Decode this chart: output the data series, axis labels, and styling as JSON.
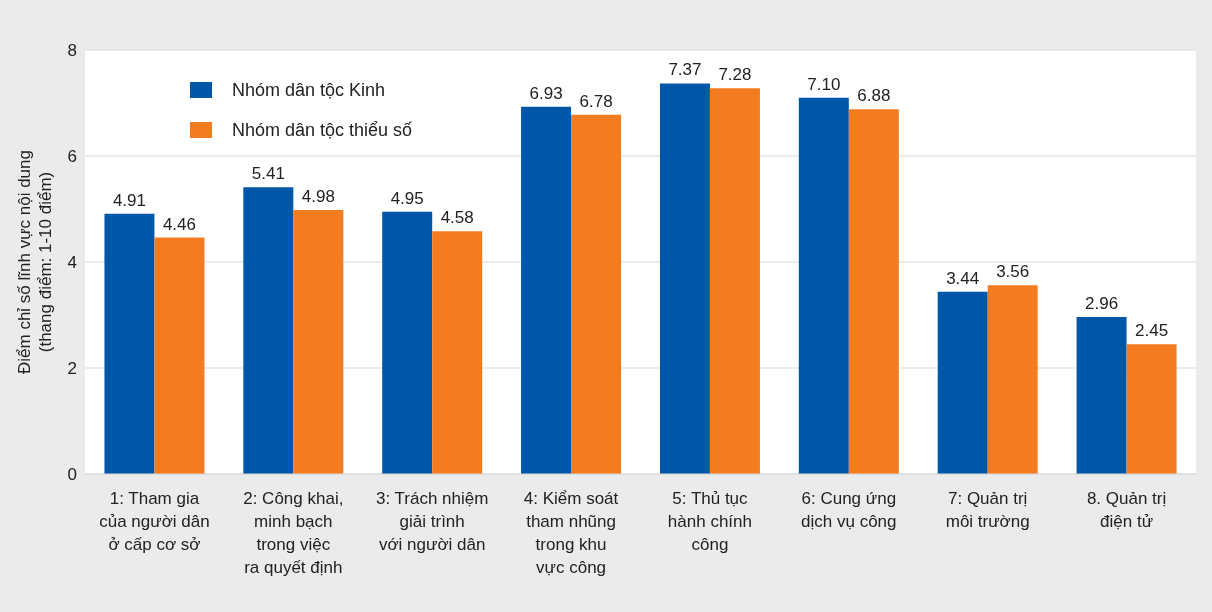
{
  "chart_data": {
    "type": "bar",
    "ylabel": "Điểm chỉ số lĩnh vực nội dung\n(thang điểm: 1-10 điểm)",
    "categories": [
      "1: Tham gia\ncủa người dân\nở cấp cơ sở",
      "2: Công khai,\nminh bạch\ntrong việc\nra quyết định",
      "3: Trách nhiệm\ngiải trình\nvới người dân",
      "4: Kiểm soát\ntham nhũng\ntrong khu\nvực công",
      "5: Thủ tục\nhành chính\ncông",
      "6: Cung ứng\ndịch vụ công",
      "7: Quản trị\nmôi trường",
      "8. Quản trị\nđiện tử"
    ],
    "series": [
      {
        "name": "Nhóm dân tộc Kinh",
        "color": "#0057a8",
        "values": [
          4.91,
          5.41,
          4.95,
          6.93,
          7.37,
          7.1,
          3.44,
          2.96
        ],
        "value_labels": [
          "4.91",
          "5.41",
          "4.95",
          "6.93",
          "7.37",
          "7.10",
          "3.44",
          "2.96"
        ]
      },
      {
        "name": "Nhóm dân tộc thiểu số",
        "color": "#f47c20",
        "values": [
          4.46,
          4.98,
          4.58,
          6.78,
          7.28,
          6.88,
          3.56,
          2.45
        ],
        "value_labels": [
          "4.46",
          "4.98",
          "4.58",
          "6.78",
          "7.28",
          "6.88",
          "3.56",
          "2.45"
        ]
      }
    ],
    "ylim": [
      0,
      8
    ],
    "yticks": [
      0,
      2,
      4,
      6,
      8
    ],
    "grid": "y",
    "legend": "top left"
  }
}
